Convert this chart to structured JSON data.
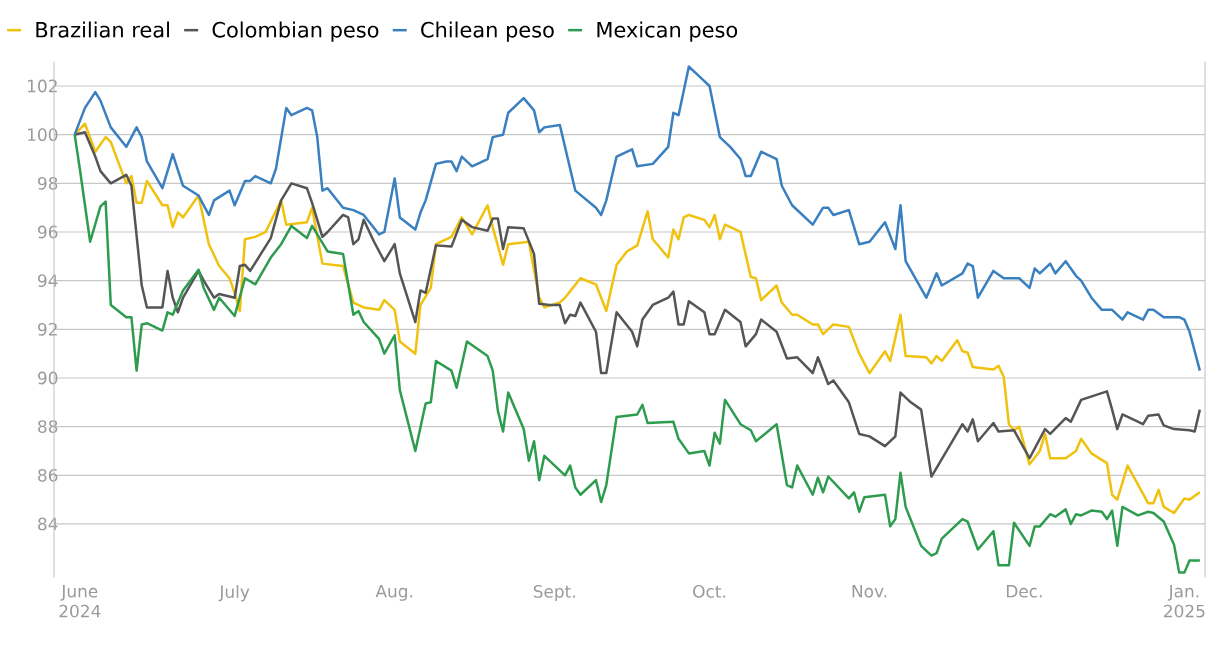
{
  "chart_data": {
    "type": "line",
    "legend": "top left",
    "grid": "y",
    "marker": "none",
    "line_style": "solid",
    "xlim": [
      "2024-05-27",
      "2025-01-05"
    ],
    "ylim": [
      81.8,
      103
    ],
    "xticks": [
      {
        "value": "2024-06-01",
        "label": "June 2024"
      },
      {
        "value": "2024-07-01",
        "label": "July"
      },
      {
        "value": "2024-08-01",
        "label": "Aug."
      },
      {
        "value": "2024-09-01",
        "label": "Sept."
      },
      {
        "value": "2024-10-01",
        "label": "Oct."
      },
      {
        "value": "2024-11-01",
        "label": "Nov."
      },
      {
        "value": "2024-12-01",
        "label": "Dec."
      },
      {
        "value": "2025-01-01",
        "label": "Jan. 2025"
      }
    ],
    "yticks": [
      84,
      86,
      88,
      90,
      92,
      94,
      96,
      98,
      100,
      102
    ],
    "series": [
      {
        "name": "Brazilian real",
        "color": "#f0c20f",
        "x": [
          "2024-05-31",
          "2024-06-02",
          "2024-06-04",
          "2024-06-06",
          "2024-06-07",
          "2024-06-10",
          "2024-06-11",
          "2024-06-12",
          "2024-06-13",
          "2024-06-14",
          "2024-06-17",
          "2024-06-18",
          "2024-06-19",
          "2024-06-20",
          "2024-06-21",
          "2024-06-24",
          "2024-06-26",
          "2024-06-28",
          "2024-06-30",
          "2024-07-01",
          "2024-07-02",
          "2024-07-03",
          "2024-07-05",
          "2024-07-07",
          "2024-07-10",
          "2024-07-11",
          "2024-07-15",
          "2024-07-16",
          "2024-07-18",
          "2024-07-22",
          "2024-07-24",
          "2024-07-26",
          "2024-07-29",
          "2024-07-30",
          "2024-08-01",
          "2024-08-02",
          "2024-08-05",
          "2024-08-06",
          "2024-08-08",
          "2024-08-09",
          "2024-08-12",
          "2024-08-14",
          "2024-08-16",
          "2024-08-19",
          "2024-08-20",
          "2024-08-22",
          "2024-08-23",
          "2024-08-27",
          "2024-08-29",
          "2024-08-30",
          "2024-09-02",
          "2024-09-03",
          "2024-09-06",
          "2024-09-09",
          "2024-09-11",
          "2024-09-13",
          "2024-09-15",
          "2024-09-17",
          "2024-09-19",
          "2024-09-20",
          "2024-09-23",
          "2024-09-24",
          "2024-09-25",
          "2024-09-26",
          "2024-09-27",
          "2024-09-30",
          "2024-10-01",
          "2024-10-02",
          "2024-10-03",
          "2024-10-04",
          "2024-10-07",
          "2024-10-09",
          "2024-10-10",
          "2024-10-11",
          "2024-10-14",
          "2024-10-15",
          "2024-10-17",
          "2024-10-18",
          "2024-10-21",
          "2024-10-22",
          "2024-10-23",
          "2024-10-25",
          "2024-10-28",
          "2024-10-30",
          "2024-11-01",
          "2024-11-04",
          "2024-11-05",
          "2024-11-07",
          "2024-11-08",
          "2024-11-12",
          "2024-11-13",
          "2024-11-14",
          "2024-11-15",
          "2024-11-18",
          "2024-11-19",
          "2024-11-20",
          "2024-11-21",
          "2024-11-25",
          "2024-11-26",
          "2024-11-27",
          "2024-11-28",
          "2024-11-29",
          "2024-11-30",
          "2024-12-02",
          "2024-12-04",
          "2024-12-05",
          "2024-12-06",
          "2024-12-09",
          "2024-12-11",
          "2024-12-12",
          "2024-12-14",
          "2024-12-17",
          "2024-12-18",
          "2024-12-19",
          "2024-12-21",
          "2024-12-25",
          "2024-12-26",
          "2024-12-27",
          "2024-12-28",
          "2024-12-30",
          "2025-01-01",
          "2025-01-02",
          "2025-01-04"
        ],
        "values": [
          100,
          100.45,
          99.3,
          99.9,
          99.7,
          98.0,
          98.3,
          97.2,
          97.2,
          98.1,
          97.1,
          97.1,
          96.2,
          96.8,
          96.6,
          97.5,
          95.5,
          94.6,
          94.1,
          93.5,
          92.75,
          95.7,
          95.8,
          96.0,
          97.3,
          96.3,
          96.4,
          97.0,
          94.7,
          94.6,
          93.1,
          92.9,
          92.8,
          93.2,
          92.8,
          91.5,
          91.0,
          93.0,
          93.7,
          95.5,
          95.8,
          96.6,
          95.9,
          97.1,
          96.2,
          94.65,
          95.5,
          95.6,
          93.3,
          92.9,
          93.1,
          93.3,
          94.1,
          93.85,
          92.75,
          94.65,
          95.2,
          95.45,
          96.85,
          95.7,
          94.95,
          96.1,
          95.7,
          96.6,
          96.7,
          96.5,
          96.2,
          96.7,
          95.7,
          96.3,
          96.0,
          94.15,
          94.1,
          93.2,
          93.8,
          93.1,
          92.6,
          92.6,
          92.2,
          92.2,
          91.8,
          92.2,
          92.1,
          91.0,
          90.2,
          91.1,
          90.7,
          92.6,
          90.9,
          90.85,
          90.6,
          90.9,
          90.7,
          91.55,
          91.1,
          91.05,
          90.45,
          90.35,
          90.5,
          90.05,
          88.1,
          87.85,
          88.0,
          86.45,
          87.0,
          87.7,
          86.7,
          86.7,
          87.0,
          87.5,
          86.9,
          86.5,
          85.2,
          85.0,
          86.4,
          84.85,
          84.85,
          85.4,
          84.7,
          84.45,
          85.05,
          85.0,
          85.3
        ]
      },
      {
        "name": "Colombian peso",
        "color": "#555555",
        "x": [
          "2024-05-31",
          "2024-06-02",
          "2024-06-04",
          "2024-06-05",
          "2024-06-07",
          "2024-06-10",
          "2024-06-11",
          "2024-06-13",
          "2024-06-14",
          "2024-06-17",
          "2024-06-18",
          "2024-06-19",
          "2024-06-20",
          "2024-06-21",
          "2024-06-24",
          "2024-06-25",
          "2024-06-27",
          "2024-06-28",
          "2024-07-01",
          "2024-07-02",
          "2024-07-03",
          "2024-07-04",
          "2024-07-08",
          "2024-07-10",
          "2024-07-12",
          "2024-07-15",
          "2024-07-16",
          "2024-07-18",
          "2024-07-19",
          "2024-07-22",
          "2024-07-23",
          "2024-07-24",
          "2024-07-25",
          "2024-07-26",
          "2024-07-28",
          "2024-07-30",
          "2024-07-31",
          "2024-08-01",
          "2024-08-02",
          "2024-08-05",
          "2024-08-06",
          "2024-08-07",
          "2024-08-09",
          "2024-08-12",
          "2024-08-14",
          "2024-08-16",
          "2024-08-19",
          "2024-08-20",
          "2024-08-21",
          "2024-08-22",
          "2024-08-23",
          "2024-08-26",
          "2024-08-28",
          "2024-08-29",
          "2024-08-31",
          "2024-09-02",
          "2024-09-03",
          "2024-09-04",
          "2024-09-05",
          "2024-09-06",
          "2024-09-09",
          "2024-09-10",
          "2024-09-11",
          "2024-09-13",
          "2024-09-16",
          "2024-09-17",
          "2024-09-18",
          "2024-09-20",
          "2024-09-23",
          "2024-09-24",
          "2024-09-25",
          "2024-09-26",
          "2024-09-27",
          "2024-09-30",
          "2024-10-01",
          "2024-10-02",
          "2024-10-04",
          "2024-10-07",
          "2024-10-08",
          "2024-10-10",
          "2024-10-11",
          "2024-10-14",
          "2024-10-16",
          "2024-10-18",
          "2024-10-21",
          "2024-10-22",
          "2024-10-24",
          "2024-10-25",
          "2024-10-28",
          "2024-10-30",
          "2024-11-01",
          "2024-11-04",
          "2024-11-06",
          "2024-11-07",
          "2024-11-09",
          "2024-11-11",
          "2024-11-13",
          "2024-11-19",
          "2024-11-20",
          "2024-11-21",
          "2024-11-22",
          "2024-11-25",
          "2024-11-26",
          "2024-11-29",
          "2024-12-02",
          "2024-12-05",
          "2024-12-06",
          "2024-12-09",
          "2024-12-10",
          "2024-12-12",
          "2024-12-17",
          "2024-12-18",
          "2024-12-19",
          "2024-12-20",
          "2024-12-24",
          "2024-12-25",
          "2024-12-27",
          "2024-12-28",
          "2024-12-30",
          "2025-01-02",
          "2025-01-03",
          "2025-01-04"
        ],
        "values": [
          100,
          100.1,
          99.1,
          98.5,
          98.0,
          98.35,
          97.9,
          93.8,
          92.9,
          92.9,
          94.4,
          93.3,
          92.7,
          93.3,
          94.4,
          94.0,
          93.3,
          93.45,
          93.3,
          94.6,
          94.65,
          94.4,
          95.75,
          97.3,
          98.0,
          97.8,
          97.2,
          95.8,
          96.0,
          96.7,
          96.6,
          95.5,
          95.7,
          96.5,
          95.6,
          94.8,
          95.15,
          95.5,
          94.3,
          92.3,
          93.6,
          93.5,
          95.45,
          95.4,
          96.5,
          96.2,
          96.05,
          96.55,
          96.55,
          95.3,
          96.2,
          96.15,
          95.1,
          93.05,
          93.0,
          93.0,
          92.25,
          92.6,
          92.55,
          93.1,
          91.9,
          90.2,
          90.2,
          92.7,
          91.9,
          91.3,
          92.4,
          93.0,
          93.3,
          93.55,
          92.2,
          92.2,
          93.15,
          92.7,
          91.8,
          91.8,
          92.8,
          92.3,
          91.3,
          91.8,
          92.4,
          91.9,
          90.8,
          90.85,
          90.2,
          90.85,
          89.75,
          89.9,
          89.0,
          87.7,
          87.6,
          87.2,
          87.6,
          89.4,
          89.0,
          88.7,
          85.95,
          88.1,
          87.8,
          88.3,
          87.4,
          88.15,
          87.8,
          87.85,
          86.7,
          87.9,
          87.7,
          88.35,
          88.2,
          89.1,
          89.45,
          88.7,
          87.9,
          88.5,
          88.1,
          88.45,
          88.5,
          88.05,
          87.9,
          87.85,
          87.8,
          88.7
        ]
      },
      {
        "name": "Chilean peso",
        "color": "#3a7fbf",
        "x": [
          "2024-05-31",
          "2024-06-02",
          "2024-06-04",
          "2024-06-05",
          "2024-06-07",
          "2024-06-10",
          "2024-06-12",
          "2024-06-13",
          "2024-06-14",
          "2024-06-17",
          "2024-06-19",
          "2024-06-21",
          "2024-06-24",
          "2024-06-26",
          "2024-06-27",
          "2024-06-30",
          "2024-07-01",
          "2024-07-03",
          "2024-07-04",
          "2024-07-05",
          "2024-07-08",
          "2024-07-09",
          "2024-07-11",
          "2024-07-12",
          "2024-07-15",
          "2024-07-16",
          "2024-07-17",
          "2024-07-18",
          "2024-07-19",
          "2024-07-22",
          "2024-07-24",
          "2024-07-26",
          "2024-07-29",
          "2024-07-30",
          "2024-08-01",
          "2024-08-02",
          "2024-08-05",
          "2024-08-06",
          "2024-08-07",
          "2024-08-09",
          "2024-08-11",
          "2024-08-12",
          "2024-08-13",
          "2024-08-14",
          "2024-08-16",
          "2024-08-19",
          "2024-08-20",
          "2024-08-22",
          "2024-08-23",
          "2024-08-26",
          "2024-08-28",
          "2024-08-29",
          "2024-08-30",
          "2024-09-02",
          "2024-09-05",
          "2024-09-09",
          "2024-09-10",
          "2024-09-11",
          "2024-09-13",
          "2024-09-16",
          "2024-09-17",
          "2024-09-20",
          "2024-09-23",
          "2024-09-24",
          "2024-09-25",
          "2024-09-27",
          "2024-09-30",
          "2024-10-01",
          "2024-10-03",
          "2024-10-05",
          "2024-10-07",
          "2024-10-08",
          "2024-10-09",
          "2024-10-11",
          "2024-10-14",
          "2024-10-15",
          "2024-10-17",
          "2024-10-21",
          "2024-10-23",
          "2024-10-24",
          "2024-10-25",
          "2024-10-28",
          "2024-10-30",
          "2024-11-01",
          "2024-11-04",
          "2024-11-06",
          "2024-11-07",
          "2024-11-08",
          "2024-11-12",
          "2024-11-14",
          "2024-11-15",
          "2024-11-19",
          "2024-11-20",
          "2024-11-21",
          "2024-11-22",
          "2024-11-25",
          "2024-11-27",
          "2024-11-30",
          "2024-12-02",
          "2024-12-03",
          "2024-12-04",
          "2024-12-06",
          "2024-12-07",
          "2024-12-09",
          "2024-12-11",
          "2024-12-12",
          "2024-12-14",
          "2024-12-16",
          "2024-12-18",
          "2024-12-20",
          "2024-12-21",
          "2024-12-24",
          "2024-12-25",
          "2024-12-26",
          "2024-12-28",
          "2024-12-31",
          "2025-01-01",
          "2025-01-02",
          "2025-01-04"
        ],
        "values": [
          100,
          101.1,
          101.75,
          101.4,
          100.3,
          99.5,
          100.3,
          99.9,
          98.9,
          97.8,
          99.2,
          97.9,
          97.5,
          96.7,
          97.3,
          97.7,
          97.1,
          98.1,
          98.1,
          98.3,
          98.0,
          98.6,
          101.1,
          100.8,
          101.1,
          101.0,
          99.9,
          97.7,
          97.8,
          97.0,
          96.9,
          96.7,
          95.9,
          96.0,
          98.2,
          96.6,
          96.1,
          96.8,
          97.3,
          98.8,
          98.9,
          98.9,
          98.5,
          99.1,
          98.7,
          99.0,
          99.9,
          100.0,
          100.9,
          101.5,
          101.0,
          100.1,
          100.3,
          100.4,
          97.7,
          97.0,
          96.7,
          97.3,
          99.1,
          99.4,
          98.7,
          98.8,
          99.5,
          100.9,
          100.8,
          102.8,
          102.2,
          102.0,
          99.9,
          99.5,
          99.0,
          98.3,
          98.3,
          99.3,
          99.0,
          97.9,
          97.1,
          96.3,
          97.0,
          97.0,
          96.7,
          96.9,
          95.5,
          95.6,
          96.4,
          95.3,
          97.1,
          94.8,
          93.3,
          94.3,
          93.8,
          94.3,
          94.7,
          94.6,
          93.3,
          94.4,
          94.1,
          94.1,
          93.7,
          94.5,
          94.3,
          94.7,
          94.3,
          94.8,
          94.2,
          94.0,
          93.3,
          92.8,
          92.8,
          92.4,
          92.7,
          92.4,
          92.8,
          92.8,
          92.5,
          92.5,
          92.4,
          91.9,
          90.3
        ]
      },
      {
        "name": "Mexican peso",
        "color": "#2e9c4f",
        "x": [
          "2024-05-31",
          "2024-06-01",
          "2024-06-02",
          "2024-06-03",
          "2024-06-05",
          "2024-06-06",
          "2024-06-07",
          "2024-06-10",
          "2024-06-11",
          "2024-06-12",
          "2024-06-13",
          "2024-06-14",
          "2024-06-17",
          "2024-06-18",
          "2024-06-19",
          "2024-06-21",
          "2024-06-24",
          "2024-06-25",
          "2024-06-27",
          "2024-06-28",
          "2024-07-01",
          "2024-07-03",
          "2024-07-05",
          "2024-07-08",
          "2024-07-10",
          "2024-07-12",
          "2024-07-15",
          "2024-07-16",
          "2024-07-19",
          "2024-07-22",
          "2024-07-24",
          "2024-07-25",
          "2024-07-26",
          "2024-07-29",
          "2024-07-30",
          "2024-08-01",
          "2024-08-02",
          "2024-08-05",
          "2024-08-07",
          "2024-08-08",
          "2024-08-09",
          "2024-08-12",
          "2024-08-13",
          "2024-08-14",
          "2024-08-15",
          "2024-08-19",
          "2024-08-20",
          "2024-08-21",
          "2024-08-22",
          "2024-08-23",
          "2024-08-26",
          "2024-08-27",
          "2024-08-28",
          "2024-08-29",
          "2024-08-30",
          "2024-09-03",
          "2024-09-04",
          "2024-09-05",
          "2024-09-06",
          "2024-09-09",
          "2024-09-10",
          "2024-09-11",
          "2024-09-13",
          "2024-09-17",
          "2024-09-18",
          "2024-09-19",
          "2024-09-24",
          "2024-09-25",
          "2024-09-27",
          "2024-09-30",
          "2024-10-01",
          "2024-10-02",
          "2024-10-03",
          "2024-10-04",
          "2024-10-07",
          "2024-10-09",
          "2024-10-10",
          "2024-10-14",
          "2024-10-16",
          "2024-10-17",
          "2024-10-18",
          "2024-10-21",
          "2024-10-22",
          "2024-10-23",
          "2024-10-24",
          "2024-10-28",
          "2024-10-29",
          "2024-10-30",
          "2024-10-31",
          "2024-11-04",
          "2024-11-05",
          "2024-11-06",
          "2024-11-07",
          "2024-11-08",
          "2024-11-11",
          "2024-11-13",
          "2024-11-14",
          "2024-11-15",
          "2024-11-19",
          "2024-11-20",
          "2024-11-22",
          "2024-11-25",
          "2024-11-26",
          "2024-11-28",
          "2024-11-29",
          "2024-12-02",
          "2024-12-03",
          "2024-12-04",
          "2024-12-06",
          "2024-12-07",
          "2024-12-09",
          "2024-12-10",
          "2024-12-11",
          "2024-12-12",
          "2024-12-14",
          "2024-12-16",
          "2024-12-17",
          "2024-12-18",
          "2024-12-19",
          "2024-12-20",
          "2024-12-23",
          "2024-12-25",
          "2024-12-26",
          "2024-12-28",
          "2024-12-30",
          "2024-12-31",
          "2025-01-01",
          "2025-01-02",
          "2025-01-04"
        ],
        "values": [
          100,
          98.6,
          97.1,
          95.6,
          97.05,
          97.25,
          93.0,
          92.5,
          92.5,
          90.3,
          92.2,
          92.25,
          91.95,
          92.7,
          92.6,
          93.6,
          94.45,
          93.7,
          92.8,
          93.3,
          92.55,
          94.1,
          93.85,
          94.95,
          95.5,
          96.25,
          95.75,
          96.25,
          95.2,
          95.1,
          92.6,
          92.75,
          92.3,
          91.6,
          91.0,
          91.75,
          89.5,
          87.0,
          88.95,
          89.0,
          90.7,
          90.3,
          89.6,
          90.55,
          91.5,
          90.9,
          90.3,
          88.65,
          87.8,
          89.4,
          87.9,
          86.6,
          87.4,
          85.8,
          86.8,
          86.0,
          86.4,
          85.5,
          85.2,
          85.8,
          84.9,
          85.6,
          88.4,
          88.5,
          88.9,
          88.15,
          88.2,
          87.5,
          86.9,
          87.0,
          86.4,
          87.75,
          87.3,
          89.1,
          88.1,
          87.85,
          87.4,
          88.1,
          85.6,
          85.5,
          86.4,
          85.2,
          85.9,
          85.3,
          85.95,
          85.05,
          85.3,
          84.5,
          85.1,
          85.2,
          83.9,
          84.2,
          86.1,
          84.7,
          83.1,
          82.7,
          82.8,
          83.4,
          84.2,
          84.1,
          82.95,
          83.7,
          82.3,
          82.3,
          84.05,
          83.1,
          83.9,
          83.9,
          84.4,
          84.3,
          84.6,
          84.0,
          84.4,
          84.35,
          84.55,
          84.5,
          84.2,
          84.55,
          83.1,
          84.7,
          84.35,
          84.5,
          84.45,
          84.1,
          83.15,
          82.0,
          82.0,
          82.5,
          82.5
        ]
      }
    ]
  }
}
